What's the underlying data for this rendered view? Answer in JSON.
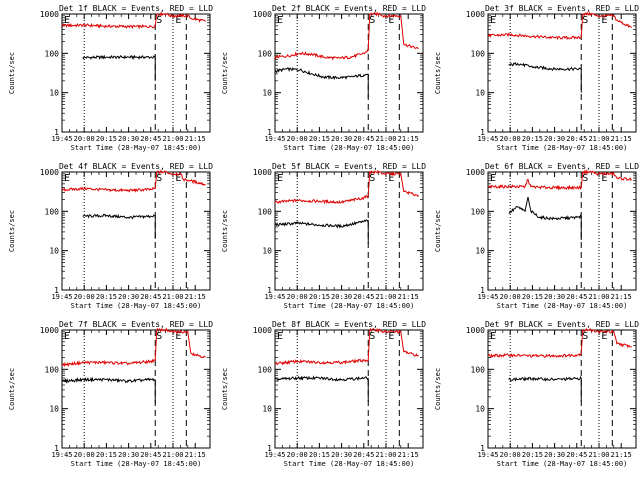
{
  "common": {
    "ylabel": "Counts/sec",
    "xlabel": "Start Time (28-May-07 18:45:00)",
    "xtick_labels": [
      "19:45",
      "20:00",
      "20:15",
      "20:30",
      "20:45",
      "21:00",
      "21:15"
    ],
    "ytick_labels": [
      "1",
      "10",
      "100",
      "1000"
    ],
    "markers": [
      "E",
      "S",
      "E"
    ],
    "colors": {
      "events": "#000000",
      "lld": "#e00000",
      "axis": "#000000"
    }
  },
  "chart_data": [
    {
      "type": "line",
      "title": "Det 1f BLACK = Events, RED = LLD",
      "yscale": "log",
      "ylim": [
        1,
        1000
      ],
      "xlim": [
        "19:45",
        "21:25"
      ],
      "series": [
        {
          "name": "Events",
          "color": "black",
          "x": [
            "19:59",
            "20:15",
            "20:30",
            "20:45",
            "20:48"
          ],
          "y": [
            78,
            80,
            80,
            80,
            80
          ]
        },
        {
          "name": "LLD",
          "color": "red",
          "x": [
            "19:45",
            "20:00",
            "20:15",
            "20:30",
            "20:45",
            "20:48",
            "20:49",
            "20:56",
            "20:58",
            "21:05",
            "21:10",
            "21:12",
            "21:22"
          ],
          "y": [
            510,
            520,
            490,
            480,
            480,
            490,
            1000,
            1000,
            900,
            900,
            900,
            780,
            650
          ]
        }
      ]
    },
    {
      "type": "line",
      "title": "Det 2f BLACK = Events, RED = LLD",
      "yscale": "log",
      "ylim": [
        1,
        1000
      ],
      "xlim": [
        "19:45",
        "21:25"
      ],
      "series": [
        {
          "name": "Events",
          "color": "black",
          "x": [
            "19:45",
            "19:53",
            "20:02",
            "20:10",
            "20:18",
            "20:27",
            "20:36",
            "20:45",
            "20:48"
          ],
          "y": [
            35,
            40,
            38,
            30,
            25,
            24,
            25,
            28,
            30
          ]
        },
        {
          "name": "LLD",
          "color": "red",
          "x": [
            "19:45",
            "19:53",
            "20:02",
            "20:10",
            "20:18",
            "20:27",
            "20:36",
            "20:45",
            "20:48",
            "20:49",
            "20:56",
            "20:58",
            "21:10",
            "21:12",
            "21:22"
          ],
          "y": [
            80,
            85,
            100,
            95,
            80,
            75,
            80,
            100,
            120,
            1000,
            1000,
            900,
            900,
            170,
            130
          ]
        }
      ]
    },
    {
      "type": "line",
      "title": "Det 3f BLACK = Events, RED = LLD",
      "yscale": "log",
      "ylim": [
        1,
        1000
      ],
      "xlim": [
        "19:45",
        "21:25"
      ],
      "series": [
        {
          "name": "Events",
          "color": "black",
          "x": [
            "19:59",
            "20:05",
            "20:15",
            "20:30",
            "20:45",
            "20:48"
          ],
          "y": [
            50,
            55,
            45,
            40,
            40,
            40
          ]
        },
        {
          "name": "LLD",
          "color": "red",
          "x": [
            "19:45",
            "20:00",
            "20:15",
            "20:30",
            "20:45",
            "20:48",
            "20:49",
            "20:56",
            "20:58",
            "21:10",
            "21:12",
            "21:22"
          ],
          "y": [
            280,
            300,
            270,
            250,
            250,
            260,
            1000,
            1000,
            900,
            900,
            700,
            450
          ]
        }
      ]
    },
    {
      "type": "line",
      "title": "Det 4f BLACK = Events, RED = LLD",
      "yscale": "log",
      "ylim": [
        1,
        1000
      ],
      "xlim": [
        "19:45",
        "21:25"
      ],
      "series": [
        {
          "name": "Events",
          "color": "black",
          "x": [
            "19:59",
            "20:15",
            "20:30",
            "20:45",
            "20:48"
          ],
          "y": [
            75,
            78,
            70,
            75,
            80
          ]
        },
        {
          "name": "LLD",
          "color": "red",
          "x": [
            "19:45",
            "20:00",
            "20:15",
            "20:30",
            "20:45",
            "20:48",
            "20:49",
            "20:56",
            "20:58",
            "21:05",
            "21:07",
            "21:12",
            "21:22"
          ],
          "y": [
            350,
            380,
            350,
            340,
            360,
            380,
            1000,
            1000,
            900,
            900,
            650,
            600,
            480
          ]
        }
      ]
    },
    {
      "type": "line",
      "title": "Det 5f BLACK = Events, RED = LLD",
      "yscale": "log",
      "ylim": [
        1,
        1000
      ],
      "xlim": [
        "19:45",
        "21:25"
      ],
      "series": [
        {
          "name": "Events",
          "color": "black",
          "x": [
            "19:45",
            "20:00",
            "20:15",
            "20:30",
            "20:45",
            "20:48"
          ],
          "y": [
            45,
            50,
            45,
            42,
            55,
            60
          ]
        },
        {
          "name": "LLD",
          "color": "red",
          "x": [
            "19:45",
            "20:00",
            "20:15",
            "20:30",
            "20:45",
            "20:48",
            "20:49",
            "20:56",
            "20:58",
            "21:10",
            "21:12",
            "21:22"
          ],
          "y": [
            170,
            190,
            180,
            170,
            220,
            250,
            1000,
            1000,
            900,
            900,
            320,
            250
          ]
        }
      ]
    },
    {
      "type": "line",
      "title": "Det 6f BLACK = Events, RED = LLD",
      "yscale": "log",
      "ylim": [
        1,
        1000
      ],
      "xlim": [
        "19:45",
        "21:25"
      ],
      "series": [
        {
          "name": "Events",
          "color": "black",
          "x": [
            "19:59",
            "20:05",
            "20:10",
            "20:12",
            "20:14",
            "20:20",
            "20:30",
            "20:45",
            "20:48"
          ],
          "y": [
            90,
            130,
            100,
            230,
            100,
            70,
            65,
            70,
            75
          ]
        },
        {
          "name": "LLD",
          "color": "red",
          "x": [
            "19:45",
            "20:00",
            "20:10",
            "20:12",
            "20:14",
            "20:20",
            "20:30",
            "20:45",
            "20:48",
            "20:49",
            "20:56",
            "20:58",
            "21:10",
            "21:12",
            "21:22"
          ],
          "y": [
            420,
            430,
            420,
            650,
            420,
            410,
            400,
            400,
            400,
            1000,
            1000,
            900,
            900,
            700,
            650
          ]
        }
      ]
    },
    {
      "type": "line",
      "title": "Det 7f BLACK = Events, RED = LLD",
      "yscale": "log",
      "ylim": [
        1,
        1000
      ],
      "xlim": [
        "19:45",
        "21:25"
      ],
      "series": [
        {
          "name": "Events",
          "color": "black",
          "x": [
            "19:45",
            "20:00",
            "20:15",
            "20:30",
            "20:45",
            "20:48"
          ],
          "y": [
            50,
            55,
            55,
            50,
            55,
            55
          ]
        },
        {
          "name": "LLD",
          "color": "red",
          "x": [
            "19:45",
            "20:00",
            "20:15",
            "20:30",
            "20:45",
            "20:48",
            "20:49",
            "20:56",
            "20:58",
            "21:10",
            "21:12",
            "21:22"
          ],
          "y": [
            130,
            150,
            150,
            140,
            160,
            170,
            1000,
            1000,
            900,
            900,
            260,
            200
          ]
        }
      ]
    },
    {
      "type": "line",
      "title": "Det 8f BLACK = Events, RED = LLD",
      "yscale": "log",
      "ylim": [
        1,
        1000
      ],
      "xlim": [
        "19:45",
        "21:25"
      ],
      "series": [
        {
          "name": "Events",
          "color": "black",
          "x": [
            "19:45",
            "20:00",
            "20:15",
            "20:30",
            "20:45",
            "20:48"
          ],
          "y": [
            55,
            60,
            60,
            55,
            60,
            60
          ]
        },
        {
          "name": "LLD",
          "color": "red",
          "x": [
            "19:45",
            "20:00",
            "20:15",
            "20:30",
            "20:45",
            "20:48",
            "20:49",
            "20:56",
            "20:58",
            "21:10",
            "21:12",
            "21:22"
          ],
          "y": [
            140,
            160,
            150,
            150,
            170,
            170,
            1000,
            1000,
            900,
            900,
            280,
            220
          ]
        }
      ]
    },
    {
      "type": "line",
      "title": "Det 9f BLACK = Events, RED = LLD",
      "yscale": "log",
      "ylim": [
        1,
        1000
      ],
      "xlim": [
        "19:45",
        "21:25"
      ],
      "series": [
        {
          "name": "Events",
          "color": "black",
          "x": [
            "19:59",
            "20:15",
            "20:30",
            "20:45",
            "20:48"
          ],
          "y": [
            55,
            58,
            55,
            58,
            60
          ]
        },
        {
          "name": "LLD",
          "color": "red",
          "x": [
            "19:45",
            "20:00",
            "20:15",
            "20:30",
            "20:45",
            "20:48",
            "20:49",
            "20:56",
            "20:58",
            "21:10",
            "21:12",
            "21:22"
          ],
          "y": [
            220,
            230,
            220,
            220,
            230,
            250,
            1000,
            1000,
            900,
            900,
            450,
            380
          ]
        }
      ]
    }
  ]
}
